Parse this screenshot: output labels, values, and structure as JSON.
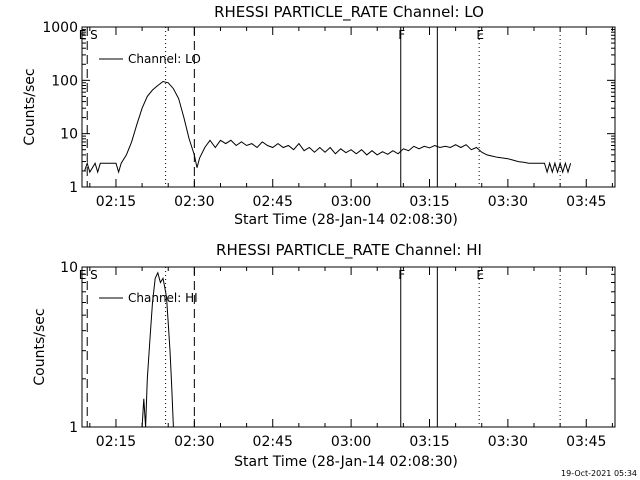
{
  "footer_timestamp": "19-Oct-2021 05:34",
  "chart_data": [
    {
      "type": "line",
      "title": "RHESSI PARTICLE_RATE Channel: LO",
      "xlabel": "Start Time (28-Jan-14 02:08:30)",
      "ylabel": "Counts/sec",
      "y_scale": "log",
      "ylim": [
        1,
        1000
      ],
      "y_ticks": [
        "1",
        "10",
        "100",
        "1000"
      ],
      "x_range": [
        "02:08:30",
        "03:50:30"
      ],
      "x_ticks": [
        "02:15",
        "02:30",
        "02:45",
        "03:00",
        "03:15",
        "03:30",
        "03:45"
      ],
      "legend": {
        "position": "top-left",
        "entries": [
          "Channel: LO"
        ]
      },
      "markers": [
        {
          "time": "02:09:30",
          "label": "E S",
          "style": "dashed"
        },
        {
          "time": "02:24:30",
          "label": "",
          "style": "dotted"
        },
        {
          "time": "02:30:00",
          "label": "",
          "style": "dashed"
        },
        {
          "time": "03:09:30",
          "label": "F",
          "style": "solid"
        },
        {
          "time": "03:16:30",
          "label": "",
          "style": "solid"
        },
        {
          "time": "03:24:30",
          "label": "E",
          "style": "dotted"
        },
        {
          "time": "03:40:00",
          "label": "",
          "style": "dotted"
        }
      ],
      "series": [
        {
          "name": "Channel: LO",
          "points": [
            [
              "02:09:00",
              2.0
            ],
            [
              "02:09:30",
              2.8
            ],
            [
              "02:10:00",
              1.9
            ],
            [
              "02:11:00",
              2.8
            ],
            [
              "02:11:30",
              1.9
            ],
            [
              "02:12:00",
              2.8
            ],
            [
              "02:13:00",
              2.8
            ],
            [
              "02:14:00",
              2.8
            ],
            [
              "02:15:00",
              2.8
            ],
            [
              "02:15:30",
              1.9
            ],
            [
              "02:16:00",
              2.8
            ],
            [
              "02:17:00",
              4.0
            ],
            [
              "02:18:00",
              7.0
            ],
            [
              "02:19:00",
              15
            ],
            [
              "02:20:00",
              30
            ],
            [
              "02:21:00",
              50
            ],
            [
              "02:22:00",
              66
            ],
            [
              "02:23:00",
              80
            ],
            [
              "02:24:00",
              95
            ],
            [
              "02:25:00",
              90
            ],
            [
              "02:26:00",
              70
            ],
            [
              "02:27:00",
              45
            ],
            [
              "02:28:00",
              20
            ],
            [
              "02:29:00",
              8
            ],
            [
              "02:30:00",
              4
            ],
            [
              "02:30:30",
              2.3
            ],
            [
              "02:31:00",
              3.5
            ],
            [
              "02:32:00",
              5.5
            ],
            [
              "02:33:00",
              7.5
            ],
            [
              "02:34:00",
              5.5
            ],
            [
              "02:35:00",
              7.5
            ],
            [
              "02:36:00",
              6.5
            ],
            [
              "02:37:00",
              7.5
            ],
            [
              "02:38:00",
              6.0
            ],
            [
              "02:39:00",
              7.0
            ],
            [
              "02:40:00",
              6.0
            ],
            [
              "02:41:00",
              6.5
            ],
            [
              "02:42:00",
              5.5
            ],
            [
              "02:43:00",
              7.0
            ],
            [
              "02:44:00",
              6.0
            ],
            [
              "02:45:00",
              5.5
            ],
            [
              "02:46:00",
              6.5
            ],
            [
              "02:47:00",
              5.5
            ],
            [
              "02:48:00",
              6.0
            ],
            [
              "02:49:00",
              5.0
            ],
            [
              "02:50:00",
              6.5
            ],
            [
              "02:51:00",
              4.8
            ],
            [
              "02:52:00",
              5.5
            ],
            [
              "02:53:00",
              4.5
            ],
            [
              "02:54:00",
              5.5
            ],
            [
              "02:55:00",
              4.5
            ],
            [
              "02:56:00",
              5.5
            ],
            [
              "02:57:00",
              4.2
            ],
            [
              "02:58:00",
              5.2
            ],
            [
              "02:59:00",
              4.4
            ],
            [
              "03:00:00",
              5.0
            ],
            [
              "03:01:00",
              4.2
            ],
            [
              "03:02:00",
              5.0
            ],
            [
              "03:03:00",
              4.0
            ],
            [
              "03:04:00",
              4.8
            ],
            [
              "03:05:00",
              4.0
            ],
            [
              "03:06:00",
              4.6
            ],
            [
              "03:07:00",
              4.1
            ],
            [
              "03:08:00",
              4.8
            ],
            [
              "03:09:00",
              4.2
            ],
            [
              "03:10:00",
              5.2
            ],
            [
              "03:11:00",
              4.8
            ],
            [
              "03:12:00",
              5.8
            ],
            [
              "03:13:00",
              5.2
            ],
            [
              "03:14:00",
              5.8
            ],
            [
              "03:15:00",
              5.4
            ],
            [
              "03:16:00",
              6.0
            ],
            [
              "03:17:00",
              5.5
            ],
            [
              "03:18:00",
              5.8
            ],
            [
              "03:19:00",
              5.5
            ],
            [
              "03:20:00",
              6.2
            ],
            [
              "03:21:00",
              5.5
            ],
            [
              "03:22:00",
              6.2
            ],
            [
              "03:23:00",
              5.0
            ],
            [
              "03:24:00",
              5.5
            ],
            [
              "03:25:00",
              4.5
            ],
            [
              "03:26:00",
              4.0
            ],
            [
              "03:27:00",
              3.8
            ],
            [
              "03:28:00",
              3.6
            ],
            [
              "03:29:00",
              3.5
            ],
            [
              "03:30:00",
              3.4
            ],
            [
              "03:31:00",
              3.2
            ],
            [
              "03:32:00",
              3.0
            ],
            [
              "03:33:00",
              2.9
            ],
            [
              "03:34:00",
              2.8
            ],
            [
              "03:35:00",
              2.8
            ],
            [
              "03:36:00",
              2.8
            ],
            [
              "03:37:00",
              2.8
            ],
            [
              "03:37:30",
              1.9
            ],
            [
              "03:38:00",
              2.8
            ],
            [
              "03:38:30",
              1.9
            ],
            [
              "03:39:00",
              2.8
            ],
            [
              "03:39:30",
              1.9
            ],
            [
              "03:40:00",
              2.8
            ],
            [
              "03:40:30",
              1.9
            ],
            [
              "03:41:00",
              2.8
            ],
            [
              "03:41:30",
              1.9
            ],
            [
              "03:42:00",
              2.8
            ]
          ]
        }
      ]
    },
    {
      "type": "line",
      "title": "RHESSI PARTICLE_RATE Channel: HI",
      "xlabel": "Start Time (28-Jan-14 02:08:30)",
      "ylabel": "Counts/sec",
      "y_scale": "log",
      "ylim": [
        1,
        10
      ],
      "y_ticks": [
        "1",
        "10"
      ],
      "x_range": [
        "02:08:30",
        "03:50:30"
      ],
      "x_ticks": [
        "02:15",
        "02:30",
        "02:45",
        "03:00",
        "03:15",
        "03:30",
        "03:45"
      ],
      "legend": {
        "position": "top-left",
        "entries": [
          "Channel: HI"
        ]
      },
      "markers": [
        {
          "time": "02:09:30",
          "label": "E S",
          "style": "dashed"
        },
        {
          "time": "02:24:30",
          "label": "",
          "style": "dotted"
        },
        {
          "time": "02:30:00",
          "label": "",
          "style": "dashed"
        },
        {
          "time": "03:09:30",
          "label": "F",
          "style": "solid"
        },
        {
          "time": "03:16:30",
          "label": "",
          "style": "solid"
        },
        {
          "time": "03:24:30",
          "label": "E",
          "style": "dotted"
        },
        {
          "time": "03:40:00",
          "label": "",
          "style": "dotted"
        }
      ],
      "series": [
        {
          "name": "Channel: HI",
          "points": [
            [
              "02:20:00",
              1.0
            ],
            [
              "02:20:20",
              1.5
            ],
            [
              "02:20:40",
              1.0
            ],
            [
              "02:21:00",
              2.0
            ],
            [
              "02:21:30",
              3.5
            ],
            [
              "02:22:00",
              6.0
            ],
            [
              "02:22:30",
              8.5
            ],
            [
              "02:23:00",
              9.2
            ],
            [
              "02:23:30",
              8.0
            ],
            [
              "02:24:00",
              8.5
            ],
            [
              "02:24:20",
              7.5
            ],
            [
              "02:24:40",
              6.5
            ],
            [
              "02:25:00",
              4.5
            ],
            [
              "02:25:20",
              3.0
            ],
            [
              "02:25:40",
              1.8
            ],
            [
              "02:26:00",
              1.0
            ]
          ]
        }
      ]
    }
  ]
}
